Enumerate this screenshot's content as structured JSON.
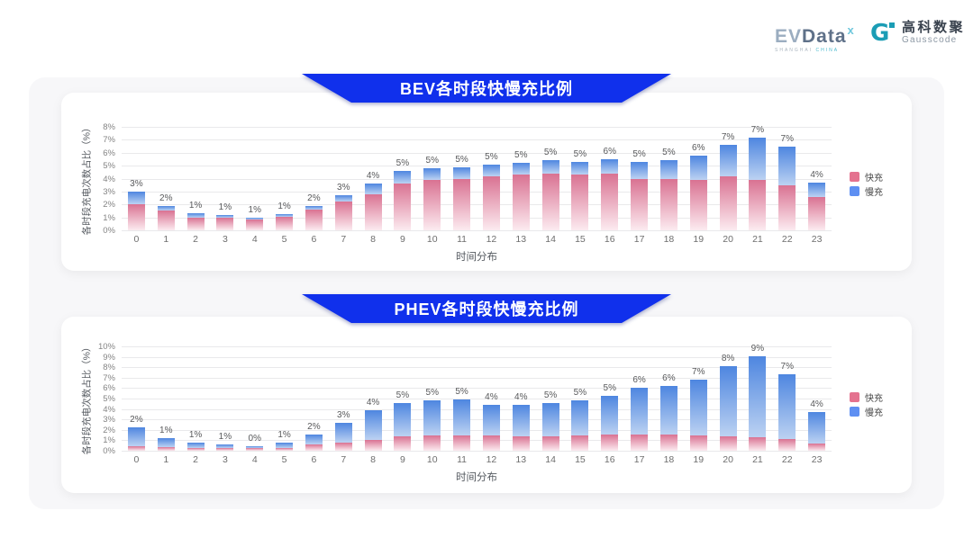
{
  "header": {
    "evdata_logo": {
      "part1": "EV",
      "part2": "Data",
      "superscript": "x",
      "sub1": "SHANGHAI ",
      "sub2": "CHINA",
      "accent_color": "#6fc7dc"
    },
    "gausscode_logo": {
      "icon_glyph": "G",
      "name_cn": "高科数聚",
      "name_en": "Gausscode",
      "icon_color": "#1b9db5"
    }
  },
  "panel": {
    "background": "#f7f7f9",
    "banner_color": "#1030ec"
  },
  "chart_data": [
    {
      "type": "bar",
      "stacked": true,
      "title": "BEV各时段快慢充比例",
      "xlabel": "时间分布",
      "ylabel": "各时段充电次数占比（%）",
      "ylim": [
        0,
        8
      ],
      "yticks": [
        "0%",
        "1%",
        "2%",
        "3%",
        "4%",
        "5%",
        "6%",
        "7%",
        "8%"
      ],
      "grid": true,
      "legend_position": "right",
      "categories": [
        "0",
        "1",
        "2",
        "3",
        "4",
        "5",
        "6",
        "7",
        "8",
        "9",
        "10",
        "11",
        "12",
        "13",
        "14",
        "15",
        "16",
        "17",
        "18",
        "19",
        "20",
        "21",
        "22",
        "23"
      ],
      "series": [
        {
          "name": "快充",
          "color": "#d97292",
          "fade_color": "#fcebf0",
          "legend_color": "#e4728f",
          "values": [
            2.0,
            1.5,
            1.0,
            0.95,
            0.85,
            1.05,
            1.6,
            2.2,
            2.8,
            3.6,
            3.9,
            4.0,
            4.2,
            4.3,
            4.4,
            4.3,
            4.4,
            4.0,
            4.0,
            3.9,
            4.2,
            3.9,
            3.5,
            2.6
          ]
        },
        {
          "name": "慢充",
          "color": "#4e86e0",
          "fade_color": "#bcd2f2",
          "legend_color": "#5e8ff2",
          "values": [
            1.0,
            0.4,
            0.3,
            0.2,
            0.1,
            0.2,
            0.3,
            0.5,
            0.8,
            1.0,
            0.9,
            0.9,
            0.9,
            0.9,
            1.0,
            1.0,
            1.1,
            1.3,
            1.4,
            1.9,
            2.4,
            3.3,
            3.0,
            1.1
          ]
        }
      ],
      "total_labels": [
        "3%",
        "2%",
        "1%",
        "1%",
        "1%",
        "1%",
        "2%",
        "3%",
        "4%",
        "5%",
        "5%",
        "5%",
        "5%",
        "5%",
        "5%",
        "5%",
        "6%",
        "5%",
        "5%",
        "6%",
        "7%",
        "7%",
        "7%",
        "4%"
      ]
    },
    {
      "type": "bar",
      "stacked": true,
      "title": "PHEV各时段快慢充比例",
      "xlabel": "时间分布",
      "ylabel": "各时段充电次数占比（%）",
      "ylim": [
        0,
        10
      ],
      "yticks": [
        "0%",
        "1%",
        "2%",
        "3%",
        "4%",
        "5%",
        "6%",
        "7%",
        "8%",
        "9%",
        "10%"
      ],
      "grid": true,
      "legend_position": "right",
      "categories": [
        "0",
        "1",
        "2",
        "3",
        "4",
        "5",
        "6",
        "7",
        "8",
        "9",
        "10",
        "11",
        "12",
        "13",
        "14",
        "15",
        "16",
        "17",
        "18",
        "19",
        "20",
        "21",
        "22",
        "23"
      ],
      "series": [
        {
          "name": "快充",
          "color": "#d97292",
          "fade_color": "#fcebf0",
          "legend_color": "#e4728f",
          "values": [
            0.45,
            0.35,
            0.3,
            0.25,
            0.22,
            0.3,
            0.6,
            0.8,
            1.0,
            1.4,
            1.45,
            1.5,
            1.45,
            1.4,
            1.4,
            1.5,
            1.55,
            1.55,
            1.55,
            1.5,
            1.4,
            1.3,
            1.15,
            0.7
          ]
        },
        {
          "name": "慢充",
          "color": "#4e86e0",
          "fade_color": "#bcd2f2",
          "legend_color": "#5e8ff2",
          "values": [
            1.75,
            0.85,
            0.5,
            0.35,
            0.25,
            0.45,
            0.95,
            1.9,
            2.9,
            3.2,
            3.35,
            3.45,
            2.95,
            3.0,
            3.2,
            3.3,
            3.75,
            4.45,
            4.65,
            5.3,
            6.7,
            7.75,
            6.2,
            3.0
          ]
        }
      ],
      "total_labels": [
        "2%",
        "1%",
        "1%",
        "1%",
        "0%",
        "1%",
        "2%",
        "3%",
        "4%",
        "5%",
        "5%",
        "5%",
        "4%",
        "4%",
        "5%",
        "5%",
        "5%",
        "6%",
        "6%",
        "7%",
        "8%",
        "9%",
        "7%",
        "4%"
      ]
    }
  ]
}
